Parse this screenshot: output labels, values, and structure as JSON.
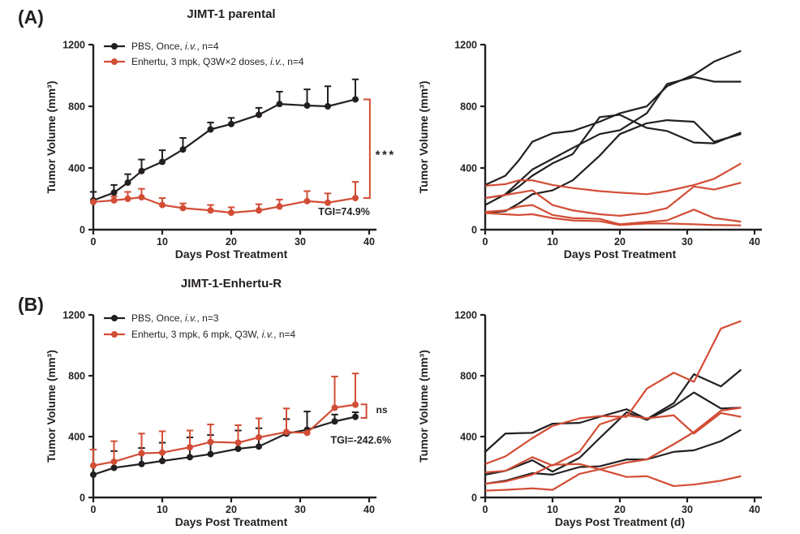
{
  "figure": {
    "panel_a_label": "(A)",
    "panel_b_label": "(B)"
  },
  "colors": {
    "black": "#231f20",
    "red": "#d24d35"
  },
  "chart_data": [
    {
      "id": "a_mean",
      "type": "line",
      "title": "JIMT-1 parental",
      "xlabel": "Days Post Treatment",
      "ylabel": "Tumor Volume (mm³)",
      "xlim": [
        0,
        40
      ],
      "ylim": [
        0,
        1200
      ],
      "xticks": [
        0,
        10,
        20,
        30,
        40
      ],
      "yticks": [
        0,
        400,
        800,
        1200
      ],
      "grid": false,
      "legend_position": "top-left-inside",
      "x": [
        0,
        3,
        5,
        7,
        10,
        13,
        17,
        20,
        24,
        27,
        31,
        34,
        38
      ],
      "series": [
        {
          "name": "PBS",
          "color": "black",
          "marker": true,
          "legend": {
            "pre": "PBS, Once, ",
            "italic": "i.v.",
            "post": ", n=4"
          },
          "values": [
            190,
            240,
            305,
            380,
            440,
            520,
            650,
            685,
            745,
            815,
            805,
            800,
            845
          ],
          "err": [
            55,
            50,
            55,
            75,
            75,
            75,
            45,
            40,
            45,
            80,
            105,
            130,
            130
          ]
        },
        {
          "name": "Enhertu",
          "color": "red",
          "marker": true,
          "legend": {
            "pre": "Enhertu, 3 mpk, Q3W×2 doses, ",
            "italic": "i.v.",
            "post": ", n=4"
          },
          "values": [
            180,
            190,
            200,
            210,
            160,
            140,
            125,
            110,
            125,
            150,
            185,
            175,
            205
          ],
          "err": [
            0,
            25,
            45,
            55,
            45,
            30,
            35,
            35,
            40,
            45,
            65,
            60,
            105
          ]
        }
      ],
      "annotations": [
        {
          "type": "bracket",
          "color": "red",
          "x_data": 40.1,
          "y1_data": 845,
          "y2_data": 205,
          "cap": 8
        },
        {
          "type": "text",
          "text": "***",
          "color": "red",
          "x_data": 40.9,
          "y_data": 460,
          "anchor": "start",
          "bold": true,
          "size": 15,
          "spacing": 2.5
        },
        {
          "type": "text",
          "text": "TGI=74.9%",
          "color": "red",
          "x_data": 40.1,
          "y_data": 95,
          "anchor": "end",
          "bold": true,
          "size": 12.5
        }
      ]
    },
    {
      "id": "a_ind",
      "type": "line",
      "title": "",
      "xlabel": "Days Post Treatment",
      "ylabel": "Tumor Volume (mm³)",
      "xlim": [
        0,
        40
      ],
      "ylim": [
        0,
        1200
      ],
      "xticks": [
        0,
        10,
        20,
        30,
        40
      ],
      "yticks": [
        0,
        400,
        800,
        1200
      ],
      "grid": false,
      "x": [
        0,
        3,
        5,
        7,
        10,
        13,
        17,
        20,
        24,
        27,
        31,
        34,
        38
      ],
      "series": [
        {
          "name": "PBS-mouse-1",
          "color": "black",
          "marker": false,
          "values": [
            290,
            350,
            450,
            570,
            625,
            640,
            700,
            755,
            800,
            930,
            1005,
            1090,
            1160
          ]
        },
        {
          "name": "PBS-mouse-2",
          "color": "black",
          "marker": false,
          "values": [
            160,
            230,
            310,
            390,
            460,
            530,
            620,
            645,
            755,
            945,
            990,
            960,
            960
          ]
        },
        {
          "name": "PBS-mouse-3",
          "color": "black",
          "marker": false,
          "values": [
            205,
            225,
            280,
            350,
            430,
            490,
            730,
            745,
            660,
            640,
            565,
            560,
            630
          ]
        },
        {
          "name": "PBS-mouse-4",
          "color": "black",
          "marker": false,
          "values": [
            110,
            120,
            170,
            230,
            255,
            320,
            480,
            620,
            690,
            710,
            700,
            570,
            620
          ]
        },
        {
          "name": "Enhertu-mouse-1",
          "color": "red",
          "marker": false,
          "values": [
            285,
            295,
            320,
            320,
            290,
            270,
            250,
            240,
            230,
            250,
            290,
            330,
            430
          ]
        },
        {
          "name": "Enhertu-mouse-2",
          "color": "red",
          "marker": false,
          "values": [
            205,
            225,
            240,
            255,
            160,
            125,
            100,
            90,
            110,
            140,
            280,
            260,
            305
          ]
        },
        {
          "name": "Enhertu-mouse-3",
          "color": "red",
          "marker": false,
          "values": [
            115,
            125,
            150,
            160,
            95,
            75,
            70,
            35,
            50,
            60,
            130,
            75,
            52
          ]
        },
        {
          "name": "Enhertu-mouse-4",
          "color": "red",
          "marker": false,
          "values": [
            108,
            100,
            95,
            100,
            75,
            60,
            55,
            30,
            40,
            40,
            35,
            30,
            28
          ]
        }
      ],
      "annotations": []
    },
    {
      "id": "b_mean",
      "type": "line",
      "title": "JIMT-1-Enhertu-R",
      "xlabel": "Days Post Treatment",
      "ylabel": "Tumor Volume (mm³)",
      "xlim": [
        0,
        40
      ],
      "ylim": [
        0,
        1200
      ],
      "xticks": [
        0,
        10,
        20,
        30,
        40
      ],
      "yticks": [
        0,
        400,
        800,
        1200
      ],
      "grid": false,
      "legend_position": "top-left-inside",
      "x": [
        0,
        3,
        7,
        10,
        14,
        17,
        21,
        24,
        28,
        31,
        35,
        38
      ],
      "series": [
        {
          "name": "PBS",
          "color": "black",
          "marker": true,
          "legend": {
            "pre": "PBS, Once, ",
            "italic": "i.v.",
            "post": ", n=3"
          },
          "values": [
            150,
            195,
            220,
            240,
            265,
            285,
            320,
            335,
            420,
            445,
            500,
            530
          ],
          "err": [
            0,
            110,
            105,
            120,
            130,
            125,
            120,
            120,
            95,
            120,
            45,
            30
          ]
        },
        {
          "name": "Enhertu",
          "color": "red",
          "marker": true,
          "legend": {
            "pre": "Enhertu, 3 mpk, 6 mpk, Q3W, ",
            "italic": "i.v.",
            "post": ", n=4"
          },
          "values": [
            210,
            235,
            290,
            295,
            330,
            365,
            360,
            395,
            430,
            425,
            590,
            610
          ],
          "err": [
            105,
            135,
            130,
            140,
            110,
            115,
            115,
            125,
            155,
            0,
            205,
            205
          ]
        }
      ],
      "annotations": [
        {
          "type": "bracket",
          "color": "red",
          "x_data": 39.6,
          "y1_data": 612,
          "y2_data": 523,
          "cap": 7
        },
        {
          "type": "text",
          "text": "ns",
          "color": "red",
          "x_data": 41.0,
          "y_data": 555,
          "anchor": "start",
          "bold": true,
          "size": 12
        },
        {
          "type": "text",
          "text": "TGI=-242.6%",
          "color": "red",
          "x_data": 38.8,
          "y_data": 355,
          "anchor": "middle",
          "bold": true,
          "size": 12.5
        }
      ]
    },
    {
      "id": "b_ind",
      "type": "line",
      "title": "",
      "xlabel": "Days Post Treatment (d)",
      "ylabel": "Tumor Volume (mm³)",
      "xlim": [
        0,
        40
      ],
      "ylim": [
        0,
        1200
      ],
      "xticks": [
        0,
        10,
        20,
        30,
        40
      ],
      "yticks": [
        0,
        400,
        800,
        1200
      ],
      "grid": false,
      "x": [
        0,
        3,
        7,
        10,
        14,
        17,
        21,
        24,
        28,
        31,
        35,
        38
      ],
      "series": [
        {
          "name": "PBS-mouse-1",
          "color": "black",
          "marker": false,
          "values": [
            300,
            420,
            425,
            485,
            490,
            530,
            580,
            515,
            620,
            810,
            730,
            840
          ]
        },
        {
          "name": "PBS-mouse-2",
          "color": "black",
          "marker": false,
          "values": [
            150,
            175,
            245,
            170,
            260,
            390,
            560,
            510,
            600,
            690,
            585,
            590
          ]
        },
        {
          "name": "PBS-mouse-3",
          "color": "black",
          "marker": false,
          "values": [
            90,
            110,
            160,
            150,
            200,
            205,
            250,
            250,
            300,
            310,
            370,
            445
          ]
        },
        {
          "name": "Enhertu-mouse-1",
          "color": "red",
          "marker": false,
          "values": [
            220,
            270,
            390,
            470,
            520,
            535,
            530,
            715,
            820,
            760,
            1110,
            1160
          ]
        },
        {
          "name": "Enhertu-mouse-2",
          "color": "red",
          "marker": false,
          "values": [
            165,
            175,
            265,
            210,
            300,
            480,
            540,
            520,
            540,
            420,
            555,
            530
          ]
        },
        {
          "name": "Enhertu-mouse-3",
          "color": "red",
          "marker": false,
          "values": [
            90,
            105,
            150,
            215,
            220,
            185,
            230,
            250,
            350,
            430,
            570,
            590
          ]
        },
        {
          "name": "Enhertu-mouse-4",
          "color": "red",
          "marker": false,
          "values": [
            45,
            50,
            60,
            50,
            155,
            185,
            135,
            140,
            75,
            85,
            110,
            140
          ]
        }
      ],
      "annotations": []
    }
  ]
}
